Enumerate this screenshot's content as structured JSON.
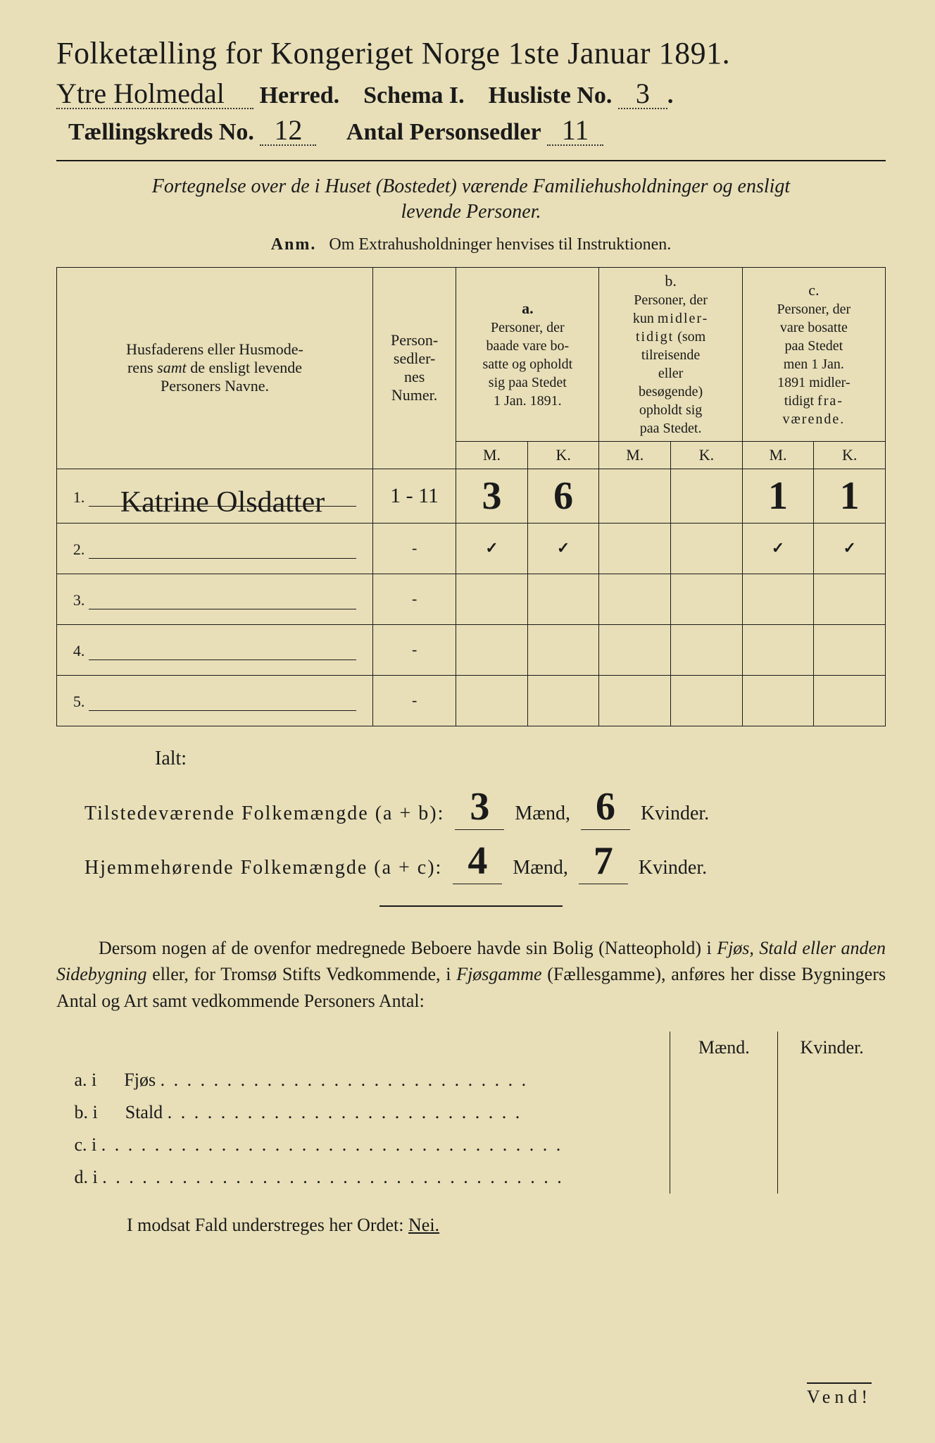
{
  "title": "Folketælling for Kongeriget Norge 1ste Januar 1891.",
  "line2": {
    "herred_hw": "Ytre Holmedal",
    "herred_label": "Herred.",
    "schema": "Schema I.",
    "husliste_label": "Husliste No.",
    "husliste_hw": "3"
  },
  "line3": {
    "kreds_label": "Tællingskreds No.",
    "kreds_hw": "12",
    "sedler_label": "Antal Personsedler",
    "sedler_hw": "11"
  },
  "subtitle_italic_1": "Fortegnelse over de i Huset (Bostedet) værende Familiehusholdninger og ensligt",
  "subtitle_italic_2": "levende Personer.",
  "anm_prefix": "Anm.",
  "anm_text": "Om Extrahusholdninger henvises til Instruktionen.",
  "headers": {
    "name": "Husfaderens eller Husmoderens samt de ensligt levende Personers Navne.",
    "name_italic_word": "samt",
    "num": "Person-sedler-nes Numer.",
    "a_label": "a.",
    "a_text": "Personer, der baade vare bosatte og opholdt sig paa Stedet 1 Jan. 1891.",
    "b_label": "b.",
    "b_text": "Personer, der kun midlertidigt (som tilreisende eller besøgende) opholdt sig paa Stedet.",
    "c_label": "c.",
    "c_text": "Personer, der vare bosatte paa Stedet men 1 Jan. 1891 midlertidigt fraværende.",
    "M": "M.",
    "K": "K."
  },
  "rows": [
    {
      "n": "1.",
      "name_hw": "Katrine Olsdatter",
      "num": "1 - 11",
      "aM": "3",
      "aK": "6",
      "bM": "",
      "bK": "",
      "cM": "1",
      "cK": "1"
    },
    {
      "n": "2.",
      "name_hw": "",
      "num": "-",
      "aM": "✓",
      "aK": "✓",
      "bM": "",
      "bK": "",
      "cM": "✓",
      "cK": "✓"
    },
    {
      "n": "3.",
      "name_hw": "",
      "num": "-",
      "aM": "",
      "aK": "",
      "bM": "",
      "bK": "",
      "cM": "",
      "cK": ""
    },
    {
      "n": "4.",
      "name_hw": "",
      "num": "-",
      "aM": "",
      "aK": "",
      "bM": "",
      "bK": "",
      "cM": "",
      "cK": ""
    },
    {
      "n": "5.",
      "name_hw": "",
      "num": "-",
      "aM": "",
      "aK": "",
      "bM": "",
      "bK": "",
      "cM": "",
      "cK": ""
    }
  ],
  "ialt": "Ialt:",
  "sum1": {
    "label": "Tilstedeværende Folkemængde (a + b):",
    "m_hw": "3",
    "k_hw": "6",
    "maend": "Mænd,",
    "kvinder": "Kvinder."
  },
  "sum2": {
    "label": "Hjemmehørende Folkemængde (a + c):",
    "m_hw": "4",
    "k_hw": "7",
    "maend": "Mænd,",
    "kvinder": "Kvinder."
  },
  "para1": "Dersom nogen af de ovenfor medregnede Beboere havde sin Bolig (Natteophold) i Fjøs, Stald eller anden Sidebygning eller, for Tromsø Stifts Vedkommende, i Fjøsgamme (Fællesgamme), anføres her disse Bygningers Antal og Art samt vedkommende Personers Antal:",
  "side_headers": {
    "m": "Mænd.",
    "k": "Kvinder."
  },
  "side_rows": [
    {
      "lab": "a.  i",
      "txt": "Fjøs"
    },
    {
      "lab": "b.  i",
      "txt": "Stald"
    },
    {
      "lab": "c.  i",
      "txt": ""
    },
    {
      "lab": "d.  i",
      "txt": ""
    }
  ],
  "final_text": "I modsat Fald understreges her Ordet:",
  "final_nei": "Nei.",
  "vend": "Vend!"
}
